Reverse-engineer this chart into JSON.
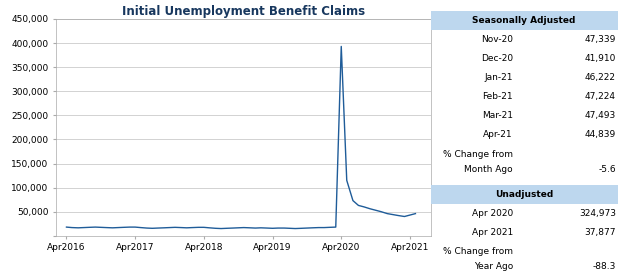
{
  "title": "Initial Unemployment Benefit Claims",
  "title_color": "#17375E",
  "line_color": "#1F5C99",
  "background_color": "#FFFFFF",
  "plot_bg_color": "#FFFFFF",
  "grid_color": "#C0C0C0",
  "y_max": 450000,
  "y_min": 0,
  "yticks": [
    0,
    50000,
    100000,
    150000,
    200000,
    250000,
    300000,
    350000,
    400000,
    450000
  ],
  "ytick_labels": [
    "",
    "50,000",
    "100,000",
    "150,000",
    "200,000",
    "250,000",
    "300,000",
    "350,000",
    "400,000",
    "450,000"
  ],
  "xtick_labels": [
    "Apr2016",
    "Apr2017",
    "Apr2018",
    "Apr2019",
    "Apr2020",
    "Apr2021"
  ],
  "sa_header": "Seasonally Adjusted",
  "sa_rows": [
    [
      "Nov-20",
      "47,339"
    ],
    [
      "Dec-20",
      "41,910"
    ],
    [
      "Jan-21",
      "46,222"
    ],
    [
      "Feb-21",
      "47,224"
    ],
    [
      "Mar-21",
      "47,493"
    ],
    [
      "Apr-21",
      "44,839"
    ]
  ],
  "pct_change_label1": "% Change from",
  "pct_change_label2": "Month Ago",
  "pct_change_val1": "-5.6",
  "ua_header": "Unadjusted",
  "ua_rows": [
    [
      "Apr 2020",
      "324,973"
    ],
    [
      "Apr 2021",
      "37,877"
    ]
  ],
  "pct_change_label3": "% Change from",
  "pct_change_label4": "Year Ago",
  "pct_change_val2": "-88.3",
  "header_bg_color": "#BDD7EE",
  "series_data": {
    "dates_numeric": [
      2016.25,
      2016.33,
      2016.42,
      2016.5,
      2016.58,
      2016.67,
      2016.75,
      2016.83,
      2016.92,
      2017.0,
      2017.08,
      2017.17,
      2017.25,
      2017.33,
      2017.42,
      2017.5,
      2017.58,
      2017.67,
      2017.75,
      2017.83,
      2017.92,
      2018.0,
      2018.08,
      2018.17,
      2018.25,
      2018.33,
      2018.42,
      2018.5,
      2018.58,
      2018.67,
      2018.75,
      2018.83,
      2018.92,
      2019.0,
      2019.08,
      2019.17,
      2019.25,
      2019.33,
      2019.42,
      2019.5,
      2019.58,
      2019.67,
      2019.75,
      2019.83,
      2019.92,
      2020.0,
      2020.08,
      2020.17,
      2020.25,
      2020.33,
      2020.42,
      2020.5,
      2020.58,
      2020.67,
      2020.75,
      2020.83,
      2020.92,
      2021.0,
      2021.08,
      2021.17,
      2021.25,
      2021.33
    ],
    "values": [
      18000,
      17000,
      16500,
      17000,
      17500,
      18000,
      17500,
      17000,
      16500,
      17000,
      17500,
      18000,
      18000,
      17000,
      16000,
      15500,
      16000,
      16500,
      17000,
      17500,
      17000,
      16500,
      17000,
      17500,
      17500,
      16500,
      15500,
      15000,
      15500,
      16000,
      16500,
      17000,
      16500,
      16000,
      16500,
      16000,
      15500,
      16000,
      16000,
      15500,
      15000,
      15500,
      16000,
      16500,
      17000,
      17000,
      17500,
      18000,
      393000,
      115000,
      73000,
      63000,
      60000,
      56000,
      53000,
      50000,
      46000,
      44000,
      42000,
      40000,
      43000,
      46000
    ]
  }
}
